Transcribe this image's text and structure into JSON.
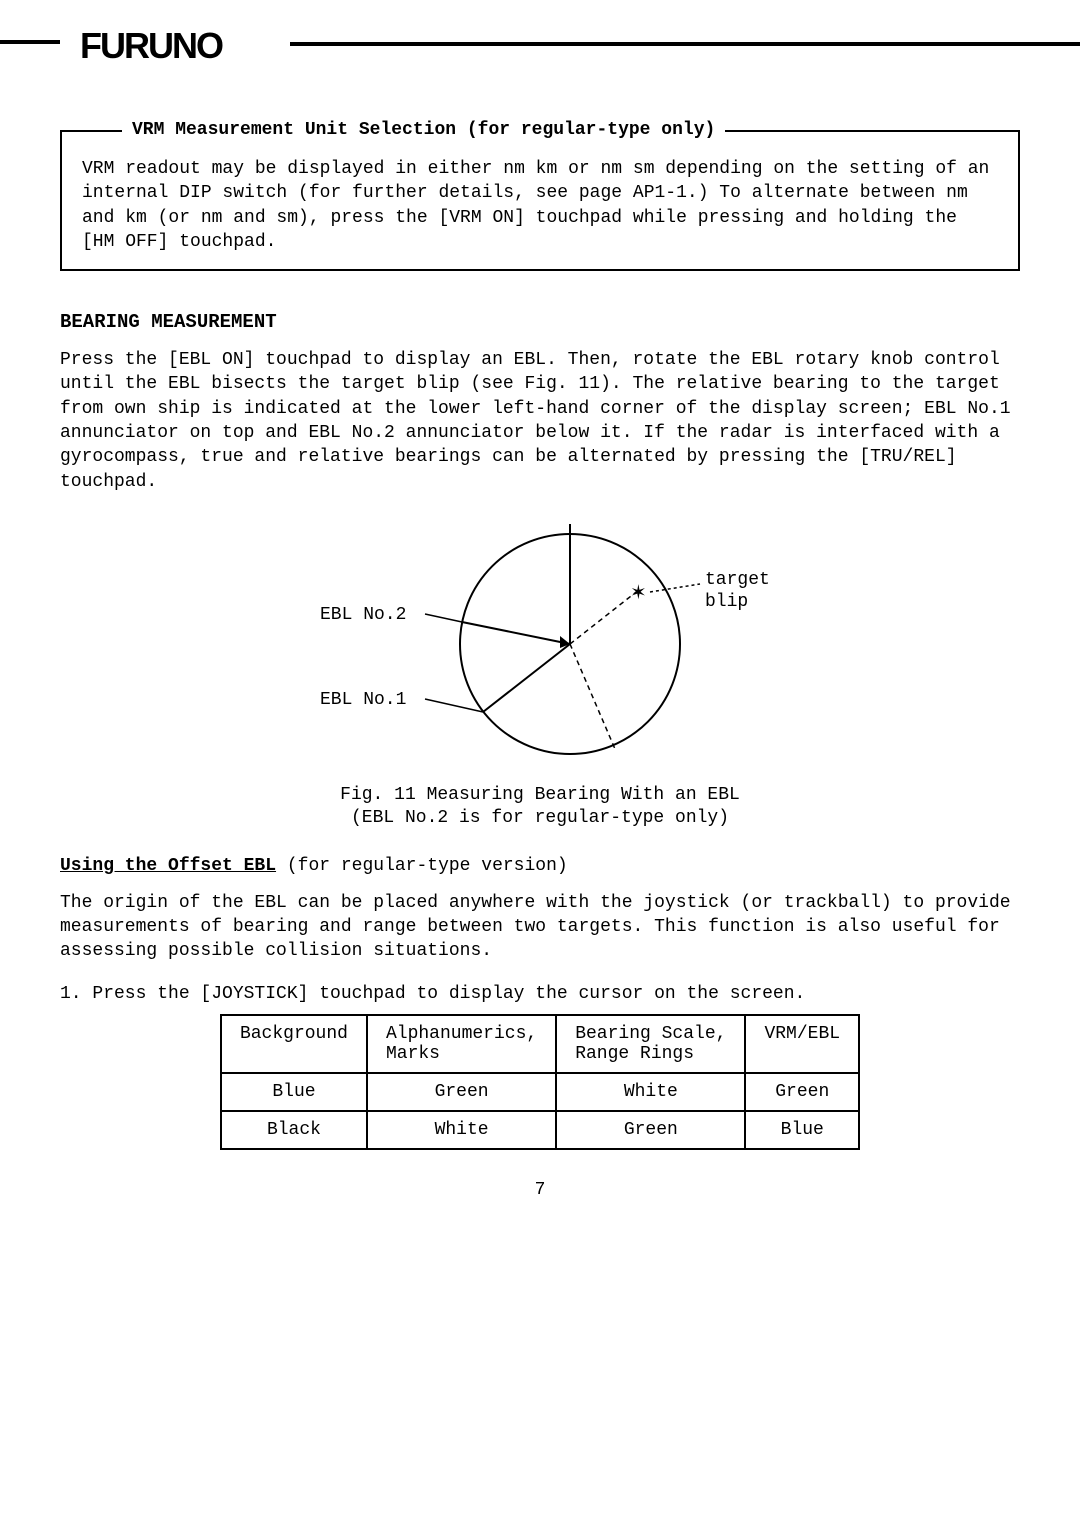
{
  "logo": "FURUNO",
  "box": {
    "title": "VRM Measurement Unit Selection (for regular-type only)",
    "body": "VRM readout may be displayed in either nm  km or nm  sm depending on the setting of an internal DIP switch (for further details, see page AP1-1.) To alternate between nm and km (or nm and sm), press the [VRM ON] touchpad while pressing and holding the [HM OFF] touchpad."
  },
  "section1": {
    "heading": "BEARING MEASUREMENT",
    "para": "Press the [EBL ON] touchpad to display an EBL.  Then, rotate the EBL rotary knob control until the EBL bisects the target blip (see Fig. 11).  The relative bearing to the target from own ship is indicated at the lower left-hand corner of the display screen; EBL No.1 annunciator on top and EBL No.2 annunciator below it.  If the radar is interfaced with a gyrocompass, true and relative bearings can be alternated by pressing the [TRU/REL] touchpad."
  },
  "figure": {
    "ebl2_label": "EBL No.2",
    "ebl1_label": "EBL No.1",
    "target_label": "target",
    "blip_label": "blip",
    "caption_line1": "Fig. 11  Measuring Bearing With an EBL",
    "caption_line2": "(EBL No.2 is for regular-type only)"
  },
  "section2": {
    "subhead_underlined": "Using the Offset EBL",
    "subhead_rest": " (for regular-type version)",
    "para": "The origin of the EBL can be placed anywhere with the joystick (or trackball) to provide measurements of bearing and range between two targets.  This function is also useful for assessing possible collision situations.",
    "step1": "1. Press the [JOYSTICK] touchpad to display the cursor on the screen."
  },
  "table": {
    "headers": [
      "Background",
      "Alphanumerics, Marks",
      "Bearing Scale, Range Rings",
      "VRM/EBL"
    ],
    "rows": [
      [
        "Blue",
        "Green",
        "White",
        "Green"
      ],
      [
        "Black",
        "White",
        "Green",
        "Blue"
      ]
    ]
  },
  "page_number": "7"
}
